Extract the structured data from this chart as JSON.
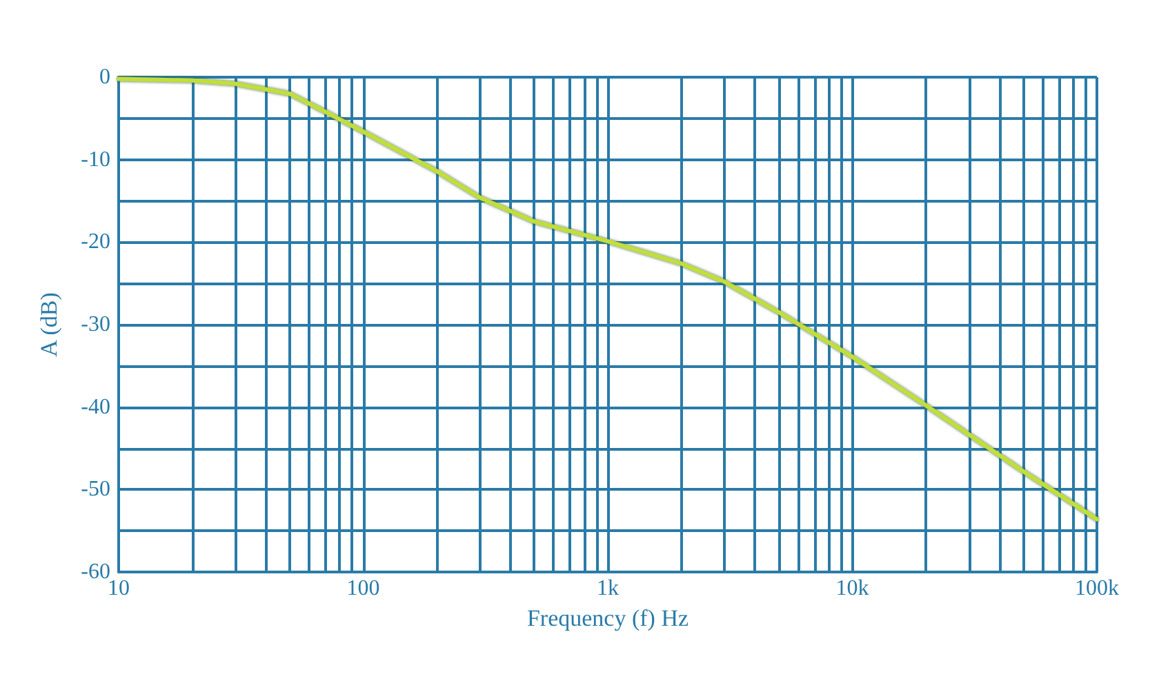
{
  "chart_data": {
    "type": "line",
    "xlabel": "Frequency (f) Hz",
    "ylabel": "A (dB)",
    "log": "x",
    "grid": true,
    "marker": "none",
    "line_style": "solid",
    "x": [
      10,
      20,
      30,
      50,
      70,
      100,
      200,
      300,
      500,
      1000,
      2000,
      3000,
      5000,
      10000,
      20000,
      50000,
      100000
    ],
    "series": [
      {
        "color": "#c2de3a",
        "values": [
          -0.2,
          -0.4,
          -0.8,
          -2,
          -4.2,
          -6.6,
          -11.4,
          -14.6,
          -17.5,
          -19.9,
          -22.6,
          -24.8,
          -28.5,
          -33.9,
          -39.8,
          -47.8,
          -53.6
        ]
      }
    ],
    "xlim": [
      10,
      100000
    ],
    "xticks": [
      {
        "value": 10,
        "label": "10"
      },
      {
        "value": 20,
        "label": null
      },
      {
        "value": 30,
        "label": null
      },
      {
        "value": 40,
        "label": null
      },
      {
        "value": 50,
        "label": null
      },
      {
        "value": 60,
        "label": null
      },
      {
        "value": 70,
        "label": null
      },
      {
        "value": 80,
        "label": null
      },
      {
        "value": 90,
        "label": null
      },
      {
        "value": 100,
        "label": "100"
      },
      {
        "value": 200,
        "label": null
      },
      {
        "value": 300,
        "label": null
      },
      {
        "value": 400,
        "label": null
      },
      {
        "value": 500,
        "label": null
      },
      {
        "value": 600,
        "label": null
      },
      {
        "value": 700,
        "label": null
      },
      {
        "value": 800,
        "label": null
      },
      {
        "value": 900,
        "label": null
      },
      {
        "value": 1000,
        "label": "1k"
      },
      {
        "value": 2000,
        "label": null
      },
      {
        "value": 3000,
        "label": null
      },
      {
        "value": 4000,
        "label": null
      },
      {
        "value": 5000,
        "label": null
      },
      {
        "value": 6000,
        "label": null
      },
      {
        "value": 7000,
        "label": null
      },
      {
        "value": 8000,
        "label": null
      },
      {
        "value": 9000,
        "label": null
      },
      {
        "value": 10000,
        "label": "10k"
      },
      {
        "value": 20000,
        "label": null
      },
      {
        "value": 30000,
        "label": null
      },
      {
        "value": 40000,
        "label": null
      },
      {
        "value": 50000,
        "label": null
      },
      {
        "value": 60000,
        "label": null
      },
      {
        "value": 70000,
        "label": null
      },
      {
        "value": 80000,
        "label": null
      },
      {
        "value": 90000,
        "label": null
      },
      {
        "value": 100000,
        "label": "100k"
      }
    ],
    "ylim": [
      -60,
      0
    ],
    "yticks": [
      -60,
      {
        "value": -55,
        "label": null
      },
      -50,
      {
        "value": -45,
        "label": null
      },
      -40,
      {
        "value": -35,
        "label": null
      },
      -30,
      {
        "value": -25,
        "label": null
      },
      -20,
      {
        "value": -15,
        "label": null
      },
      -10,
      {
        "value": -5,
        "label": null
      },
      0
    ]
  }
}
